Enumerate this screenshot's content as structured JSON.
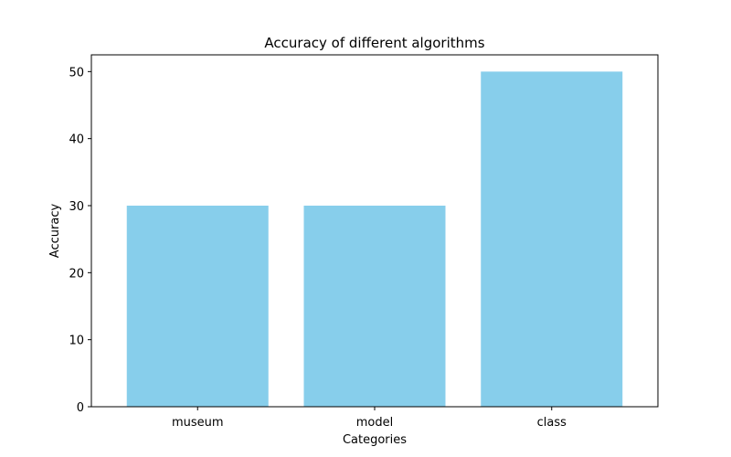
{
  "chart_data": {
    "type": "bar",
    "title": "Accuracy of different algorithms",
    "xlabel": "Categories",
    "ylabel": "Accuracy",
    "categories": [
      "museum",
      "model",
      "class"
    ],
    "values": [
      30,
      30,
      50
    ],
    "ylim": [
      0,
      52.5
    ],
    "yticks": [
      0,
      10,
      20,
      30,
      40,
      50
    ],
    "bar_color": "#87CEEB",
    "grid": false,
    "legend": "none"
  }
}
